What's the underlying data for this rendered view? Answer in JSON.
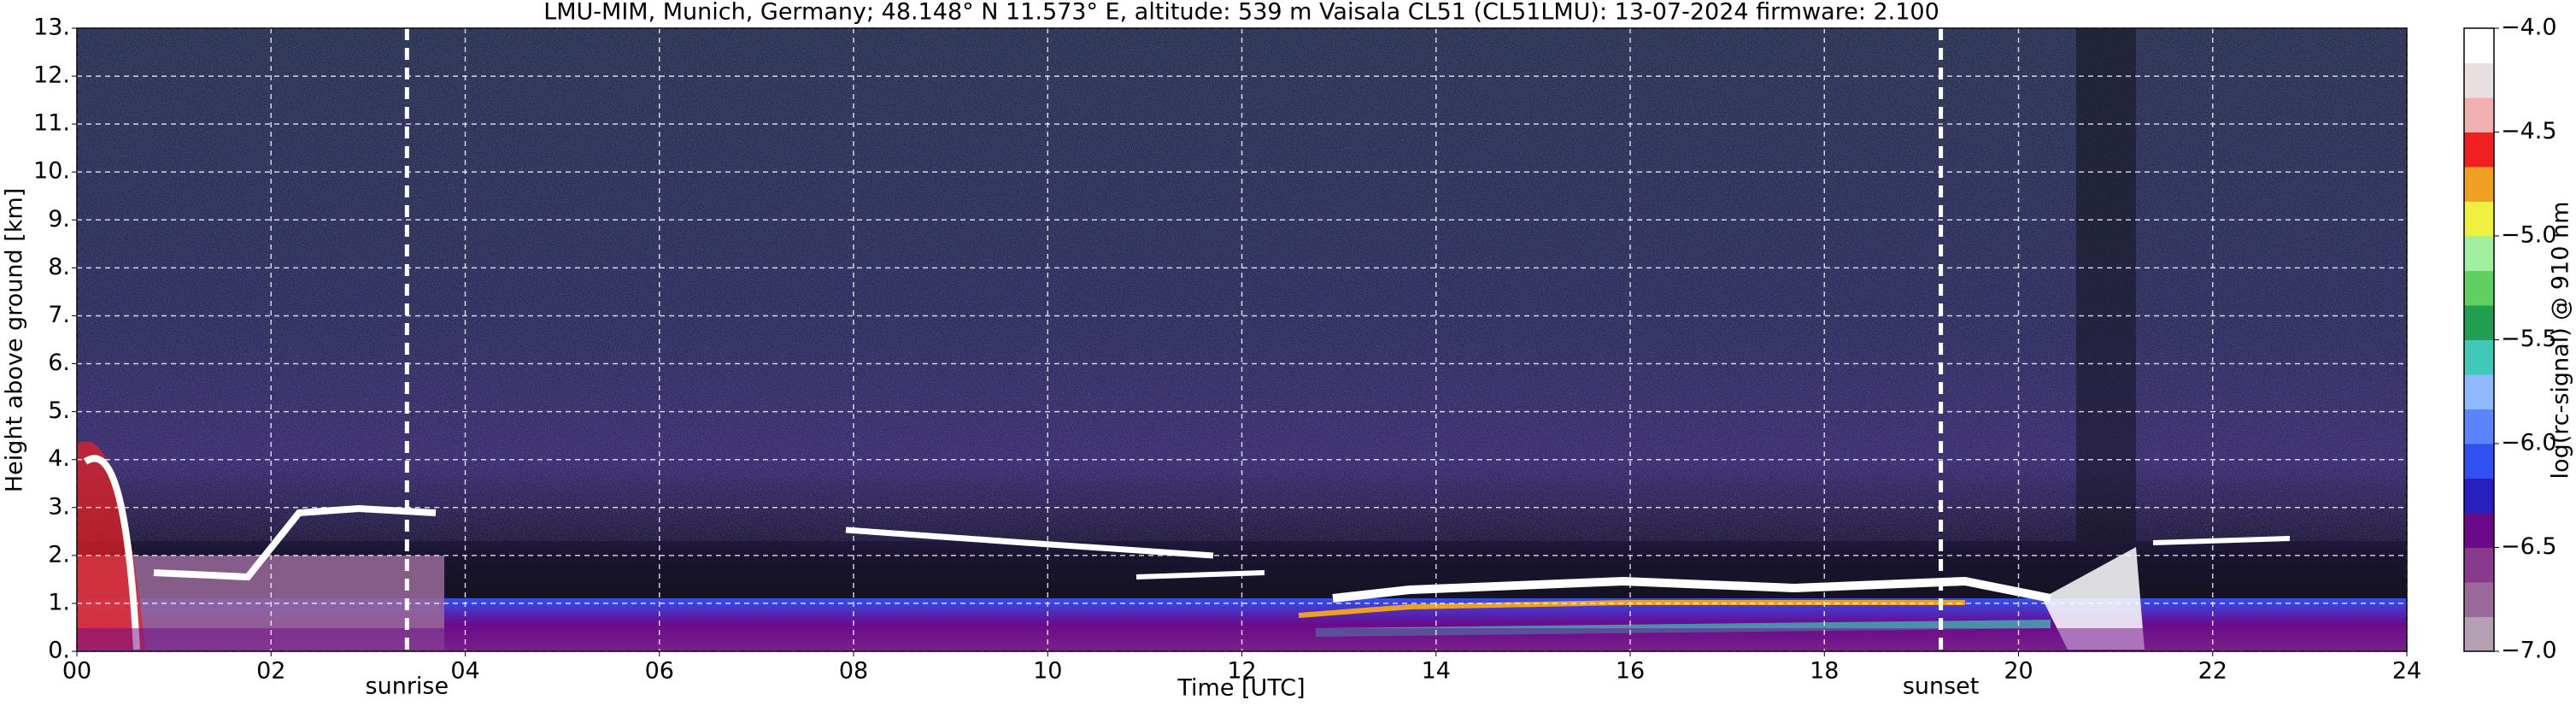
{
  "chart_data": {
    "type": "heatmap",
    "title": "LMU-MIM, Munich, Germany; 48.148° N 11.573° E, altitude: 539 m    Vaisala CL51 (CL51LMU): 13-07-2024    firmware: 2.100",
    "x_label": "Time [UTC]",
    "y_label": "Height above ground [km]",
    "xlim": [
      0,
      24
    ],
    "xticks": [
      {
        "value": 0,
        "label": "00"
      },
      {
        "value": 2,
        "label": "02"
      },
      {
        "value": 4,
        "label": "04"
      },
      {
        "value": 6,
        "label": "06"
      },
      {
        "value": 8,
        "label": "08"
      },
      {
        "value": 10,
        "label": "10"
      },
      {
        "value": 12,
        "label": "12"
      },
      {
        "value": 14,
        "label": "14"
      },
      {
        "value": 16,
        "label": "16"
      },
      {
        "value": 18,
        "label": "18"
      },
      {
        "value": 20,
        "label": "20"
      },
      {
        "value": 22,
        "label": "22"
      },
      {
        "value": 24,
        "label": "24"
      }
    ],
    "ylim": [
      0,
      13
    ],
    "yticks": [
      {
        "value": 0,
        "label": "0."
      },
      {
        "value": 1,
        "label": "1."
      },
      {
        "value": 2,
        "label": "2."
      },
      {
        "value": 3,
        "label": "3."
      },
      {
        "value": 4,
        "label": "4."
      },
      {
        "value": 5,
        "label": "5."
      },
      {
        "value": 6,
        "label": "6."
      },
      {
        "value": 7,
        "label": "7."
      },
      {
        "value": 8,
        "label": "8."
      },
      {
        "value": 9,
        "label": "9."
      },
      {
        "value": 10,
        "label": "10."
      },
      {
        "value": 11,
        "label": "11."
      },
      {
        "value": 12,
        "label": "12."
      },
      {
        "value": 13,
        "label": "13."
      }
    ],
    "grid": true,
    "annotations": [
      {
        "text": "sunrise",
        "x": 3.4
      },
      {
        "text": "sunset",
        "x": 19.2
      }
    ],
    "colorbar": {
      "label": "log(rc-signal) @ 910 nm",
      "lim": [
        -7,
        -4
      ],
      "ticks": [
        {
          "value": -7,
          "label": "−7.0"
        },
        {
          "value": -6.5,
          "label": "−6.5"
        },
        {
          "value": -6,
          "label": "−6.0"
        },
        {
          "value": -5.5,
          "label": "−5.5"
        },
        {
          "value": -5,
          "label": "−5.0"
        },
        {
          "value": -4.5,
          "label": "−4.5"
        },
        {
          "value": -4,
          "label": "−4.0"
        }
      ],
      "colors": [
        "#b3a0b3",
        "#9a6a9a",
        "#8a3a8a",
        "#6a0a8a",
        "#2a20c0",
        "#3050f0",
        "#5a85ff",
        "#90b8ff",
        "#40c8b8",
        "#20a050",
        "#60d060",
        "#a0f0a0",
        "#f0f040",
        "#f0a020",
        "#f02020",
        "#f0b0b0",
        "#e8e0e0",
        "#ffffff"
      ]
    }
  }
}
